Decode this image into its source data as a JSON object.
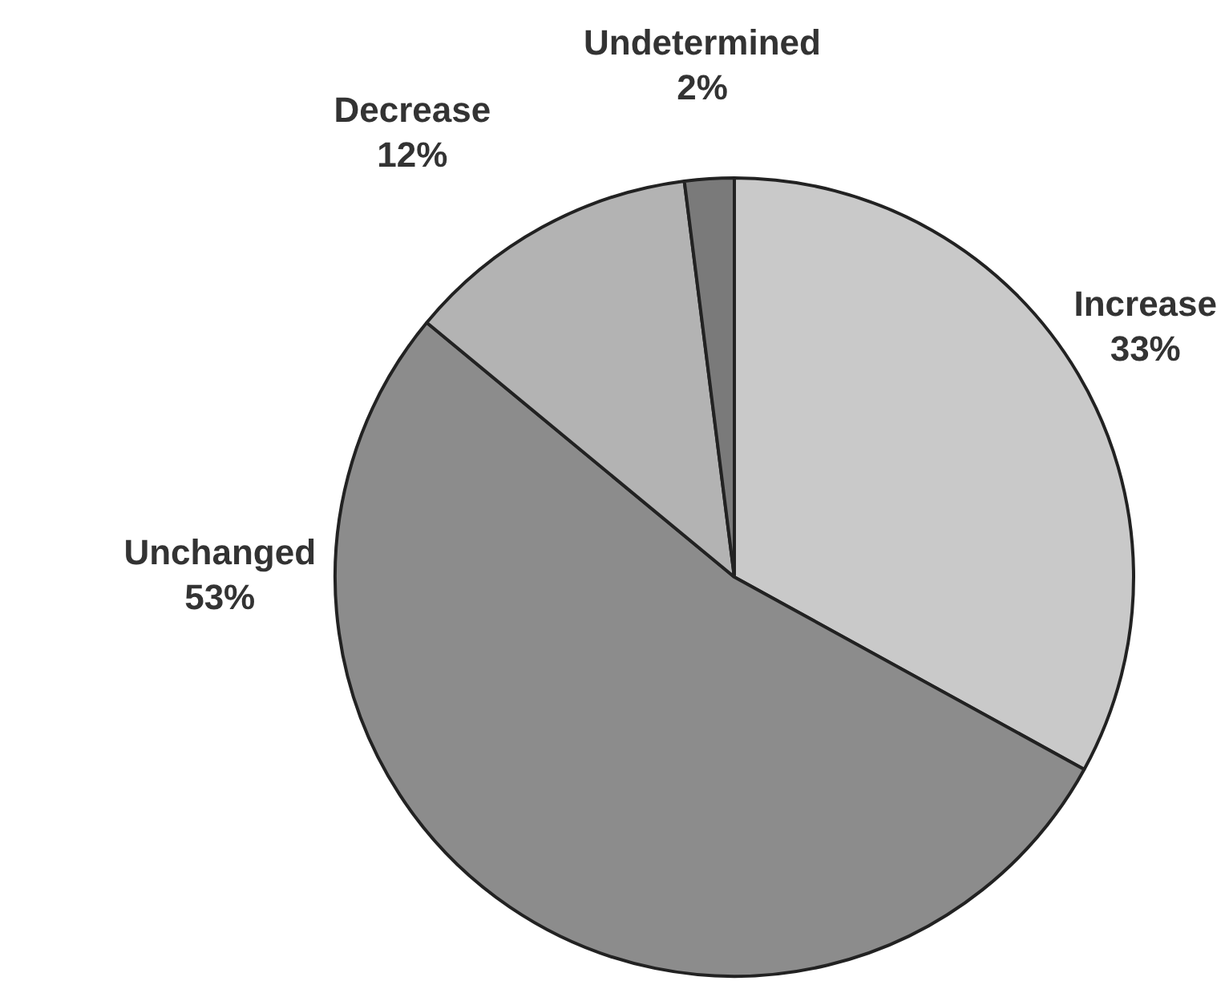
{
  "chart_data": {
    "type": "pie",
    "categories": [
      "Increase",
      "Unchanged",
      "Decrease",
      "Undetermined"
    ],
    "values": [
      33,
      53,
      12,
      2
    ],
    "value_labels": [
      "33%",
      "53%",
      "12%",
      "2%"
    ],
    "colors": [
      "#c9c9c9",
      "#8c8c8c",
      "#b3b3b3",
      "#7a7a7a"
    ],
    "legend": false
  }
}
